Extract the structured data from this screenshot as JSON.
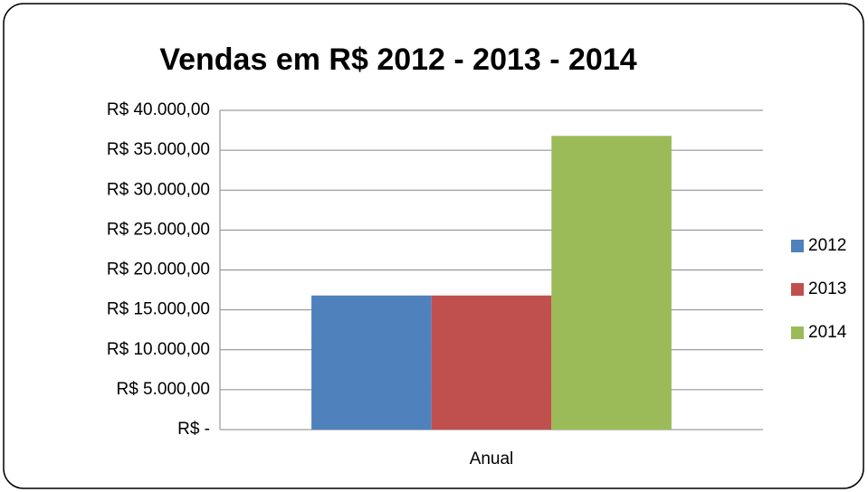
{
  "chart_data": {
    "type": "bar",
    "title": "Vendas em R$ 2012 - 2013 - 2014",
    "categories": [
      "Anual"
    ],
    "series": [
      {
        "name": "2012",
        "color": "#4f81bd",
        "values": [
          16800
        ]
      },
      {
        "name": "2013",
        "color": "#c0504d",
        "values": [
          16800
        ]
      },
      {
        "name": "2014",
        "color": "#9bbb59",
        "values": [
          36800
        ]
      }
    ],
    "ylim": [
      0,
      40000
    ],
    "yticks": [
      {
        "value": 0,
        "label": "R$ -"
      },
      {
        "value": 5000,
        "label": "R$ 5.000,00"
      },
      {
        "value": 10000,
        "label": "R$ 10.000,00"
      },
      {
        "value": 15000,
        "label": "R$ 15.000,00"
      },
      {
        "value": 20000,
        "label": "R$ 20.000,00"
      },
      {
        "value": 25000,
        "label": "R$ 25.000,00"
      },
      {
        "value": 30000,
        "label": "R$ 30.000,00"
      },
      {
        "value": 35000,
        "label": "R$ 35.000,00"
      },
      {
        "value": 40000,
        "label": "R$ 40.000,00"
      }
    ],
    "grid": true,
    "legend": "right"
  }
}
